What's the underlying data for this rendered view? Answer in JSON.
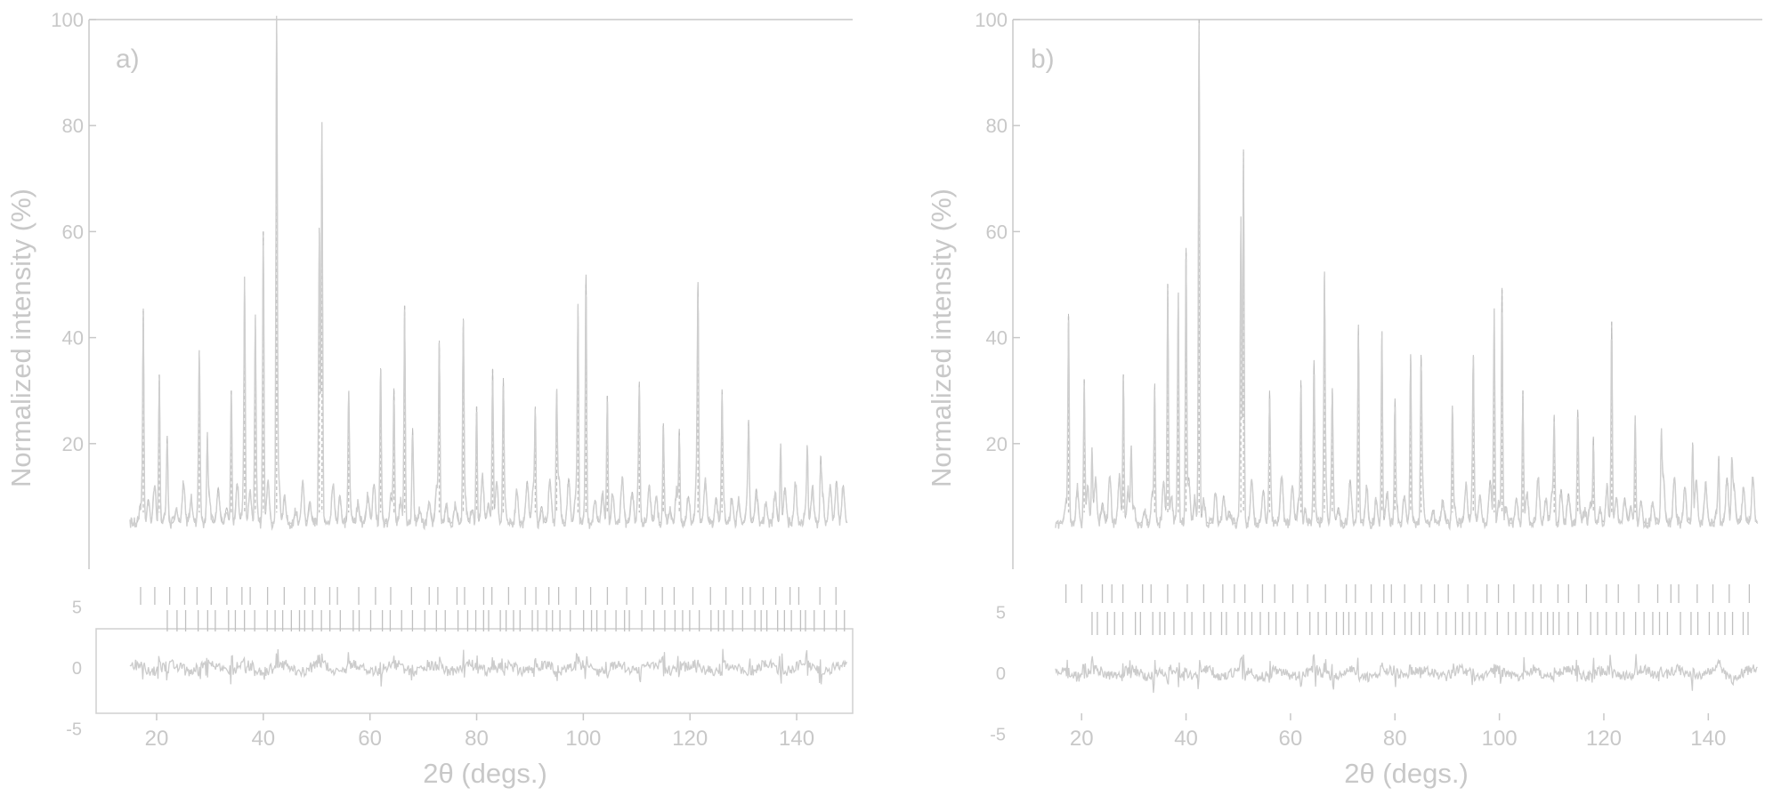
{
  "figure": {
    "panels": [
      {
        "label": "a)",
        "ylabel": "Normalized intensity (%)",
        "xlabel": "2θ (degs.)",
        "yticks": [
          "20",
          "40",
          "60",
          "80",
          "100"
        ],
        "xticks": [
          "20",
          "40",
          "60",
          "80",
          "100",
          "120",
          "140"
        ],
        "diff_ticks": [
          "5",
          "0",
          "-5"
        ]
      },
      {
        "label": "b)",
        "ylabel": "Normalized intensity (%)",
        "xlabel": "2θ (degs.)",
        "yticks": [
          "20",
          "40",
          "60",
          "80",
          "100"
        ],
        "xticks": [
          "20",
          "40",
          "60",
          "80",
          "100",
          "120",
          "140"
        ],
        "diff_ticks": [
          "5",
          "0",
          "-5"
        ]
      }
    ]
  },
  "chart_data": [
    {
      "type": "line",
      "panel": "a)",
      "xlabel": "2θ (degs.)",
      "ylabel": "Normalized intensity (%)",
      "xlim": [
        14,
        150
      ],
      "ylim": [
        0,
        100
      ],
      "diff_ylim": [
        -5,
        5
      ],
      "background": 5,
      "grid": false,
      "peaks": {
        "x": [
          17.5,
          20.5,
          22,
          28,
          29.5,
          34,
          36.5,
          38.5,
          40,
          42.5,
          50.5,
          51,
          56,
          62,
          64.5,
          66.5,
          68,
          73,
          77.5,
          80,
          83,
          85,
          91,
          95,
          99,
          100.5,
          104.5,
          110.5,
          115,
          118,
          121.5,
          126,
          131,
          137,
          142,
          144.5
        ],
        "y": [
          45,
          33,
          20,
          32,
          20,
          30,
          49,
          40,
          60,
          100,
          58,
          74,
          25,
          32,
          30,
          46,
          20,
          38,
          42,
          27,
          34,
          30,
          25,
          28,
          44,
          50,
          29,
          25,
          22,
          22,
          45,
          25,
          20,
          20,
          17,
          15
        ]
      },
      "reflection_rows": 2
    },
    {
      "type": "line",
      "panel": "b)",
      "xlabel": "2θ (degs.)",
      "ylabel": "Normalized intensity (%)",
      "xlim": [
        14,
        150
      ],
      "ylim": [
        0,
        100
      ],
      "diff_ylim": [
        -5,
        5
      ],
      "background": 5,
      "grid": false,
      "peaks": {
        "x": [
          17.5,
          20.5,
          22,
          28,
          29.5,
          34,
          36.5,
          38.5,
          40,
          42.5,
          50.5,
          51,
          56,
          62,
          64.5,
          66.5,
          68,
          73,
          77.5,
          80,
          83,
          85,
          91,
          95,
          99,
          100.5,
          104.5,
          110.5,
          115,
          118,
          121.5,
          126,
          131,
          137,
          142,
          144.5
        ],
        "y": [
          44,
          32,
          19,
          33,
          19,
          30,
          50,
          44,
          56,
          100,
          58,
          75,
          24,
          31,
          31,
          46,
          22,
          38,
          41,
          27,
          34,
          31,
          26,
          28,
          45,
          49,
          30,
          24,
          22,
          21,
          43,
          25,
          20,
          20,
          17,
          15
        ]
      },
      "reflection_rows": 2
    }
  ]
}
